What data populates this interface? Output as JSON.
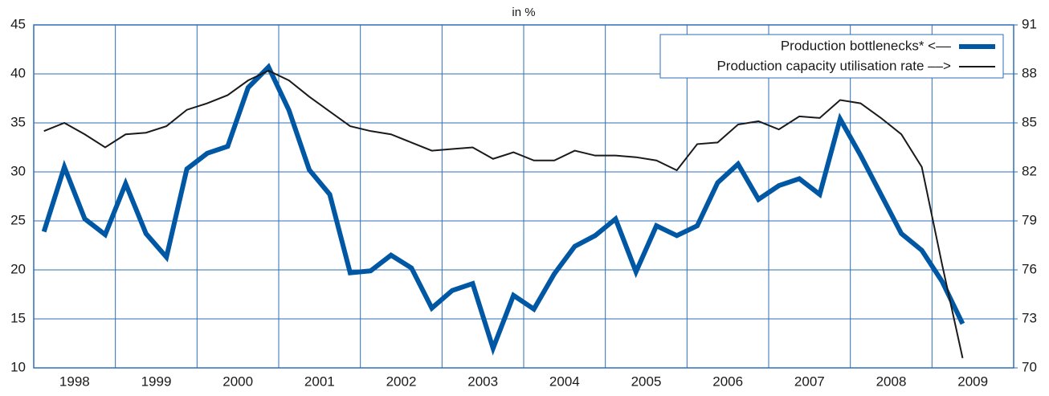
{
  "chart_data": {
    "type": "line",
    "title": "in %",
    "x": [
      1998.125,
      1998.375,
      1998.625,
      1998.875,
      1999.125,
      1999.375,
      1999.625,
      1999.875,
      2000.125,
      2000.375,
      2000.625,
      2000.875,
      2001.125,
      2001.375,
      2001.625,
      2001.875,
      2002.125,
      2002.375,
      2002.625,
      2002.875,
      2003.125,
      2003.375,
      2003.625,
      2003.875,
      2004.125,
      2004.375,
      2004.625,
      2004.875,
      2005.125,
      2005.375,
      2005.625,
      2005.875,
      2006.125,
      2006.375,
      2006.625,
      2006.875,
      2007.125,
      2007.375,
      2007.625,
      2007.875,
      2008.125,
      2008.375,
      2008.625,
      2008.875,
      2009.125,
      2009.375
    ],
    "series": [
      {
        "name": "Production bottlenecks* <––",
        "color": "#0057a3",
        "width": 6,
        "values": [
          23.9,
          30.5,
          25.2,
          23.6,
          28.8,
          23.7,
          21.3,
          30.3,
          31.9,
          32.6,
          38.6,
          40.7,
          36.3,
          30.2,
          27.7,
          19.7,
          19.9,
          21.5,
          20.2,
          16.1,
          17.9,
          18.6,
          12.0,
          17.4,
          16.0,
          19.6,
          22.4,
          23.5,
          25.2,
          19.8,
          24.5,
          23.5,
          24.5,
          28.9,
          30.8,
          27.2,
          28.6,
          29.3,
          27.7,
          35.4,
          31.7,
          27.7,
          23.7,
          22.0,
          18.8,
          14.5
        ]
      },
      {
        "name": "Production capacity utilisation rate ––>",
        "color": "#1a1a1a",
        "width": 2,
        "axis": "y2",
        "values": [
          84.5,
          85.0,
          84.3,
          83.5,
          84.3,
          84.4,
          84.8,
          85.8,
          86.2,
          86.7,
          87.6,
          88.2,
          87.6,
          86.6,
          85.7,
          84.8,
          84.5,
          84.3,
          83.8,
          83.3,
          83.4,
          83.5,
          82.8,
          83.2,
          82.7,
          82.7,
          83.3,
          83.0,
          83.0,
          82.9,
          82.7,
          82.1,
          83.7,
          83.8,
          84.9,
          85.1,
          84.6,
          85.4,
          85.3,
          86.4,
          86.2,
          85.3,
          84.3,
          82.3,
          76.3,
          70.6
        ]
      }
    ],
    "xlim": [
      1998,
      2010
    ],
    "xticks": [
      1998,
      1999,
      2000,
      2001,
      2002,
      2003,
      2004,
      2005,
      2006,
      2007,
      2008,
      2009
    ],
    "ylim": [
      10,
      45
    ],
    "yticks": [
      10,
      15,
      20,
      25,
      30,
      35,
      40,
      45
    ],
    "y2lim": [
      70,
      91
    ],
    "y2ticks": [
      70,
      73,
      76,
      79,
      82,
      85,
      88,
      91
    ],
    "grid": true,
    "legend": "top-right",
    "grid_color": "#2e6fb7"
  }
}
